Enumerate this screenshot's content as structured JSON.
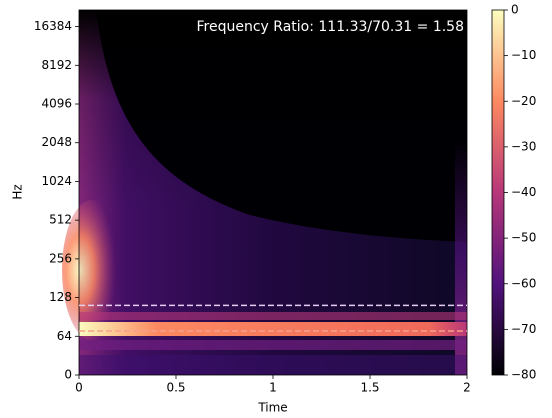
{
  "chart_data": {
    "type": "spectrogram",
    "annotation": "Frequency Ratio: 111.33/70.31 = 1.58",
    "x_label": "Time",
    "y_label": "Hz",
    "xlim": [
      0,
      2
    ],
    "xticks": [
      0,
      0.5,
      1,
      1.5,
      2
    ],
    "ylim": [
      0,
      22050
    ],
    "yscale": "symlog",
    "linthresh": 64,
    "yticks": [
      0,
      64,
      128,
      256,
      512,
      1024,
      2048,
      4096,
      8192,
      16384
    ],
    "lines": [
      {
        "value": 111.33,
        "color": "#e6cdf2"
      },
      {
        "value": 70.31,
        "color": "#f7a08c"
      }
    ],
    "colorbar": {
      "lim": [
        -80,
        0
      ],
      "cmap": [
        "#000004",
        "#51127c",
        "#b73779",
        "#fc8961",
        "#fcfdbf"
      ],
      "ticks": [
        0,
        {
          "value": -10,
          "label": "−10"
        },
        {
          "value": -20,
          "label": "−20"
        },
        {
          "value": -30,
          "label": "−30"
        },
        {
          "value": -40,
          "label": "−40"
        },
        {
          "value": -50,
          "label": "−50"
        },
        {
          "value": -60,
          "label": "−60"
        },
        {
          "value": -70,
          "label": "−70"
        },
        {
          "value": -80,
          "label": "−80"
        }
      ]
    }
  }
}
